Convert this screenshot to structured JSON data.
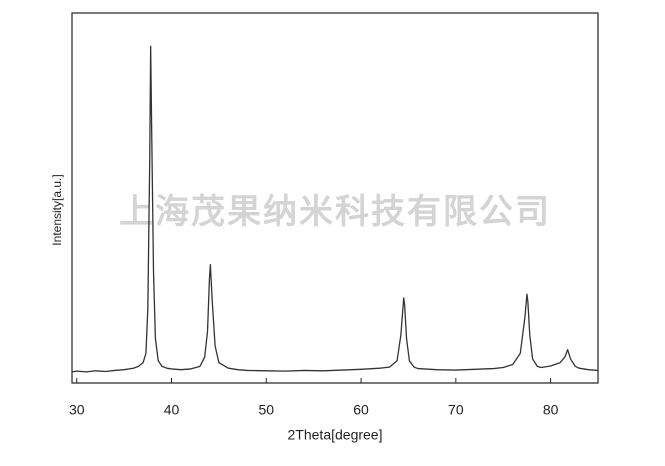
{
  "chart_data": {
    "type": "line",
    "x_label": "2Theta[degree]",
    "y_label": "Intensity[a.u.]",
    "watermark": "上海茂果纳米科技有限公司",
    "color": "#333333",
    "xlim": [
      29.5,
      85
    ],
    "ylim": [
      0,
      100
    ],
    "xticks": [
      30,
      40,
      50,
      60,
      70,
      80
    ],
    "x": [
      29.5,
      30,
      31,
      32,
      33,
      34,
      35,
      36,
      36.5,
      37,
      37.3,
      37.5,
      37.7,
      37.8,
      37.9,
      38.1,
      38.3,
      38.6,
      39,
      39.5,
      40,
      41,
      42,
      43,
      43.5,
      43.8,
      44.0,
      44.1,
      44.3,
      44.6,
      45,
      46,
      47,
      48,
      50,
      52,
      54,
      56,
      58,
      60,
      62,
      63,
      63.8,
      64.2,
      64.5,
      64.6,
      64.8,
      65.1,
      65.6,
      66,
      68,
      70,
      72,
      74,
      75,
      76,
      76.8,
      77.3,
      77.5,
      77.6,
      77.8,
      78.1,
      78.6,
      79,
      80,
      81,
      81.5,
      81.8,
      82.1,
      82.6,
      83,
      84,
      85
    ],
    "values": [
      3,
      3.2,
      3,
      3.3,
      3.1,
      3.4,
      3.6,
      4,
      4.5,
      5.5,
      8,
      20,
      60,
      91,
      70,
      30,
      12,
      6,
      4.5,
      4,
      3.8,
      3.6,
      3.8,
      4.5,
      7,
      14,
      28,
      32,
      22,
      10,
      5.5,
      4,
      3.6,
      3.4,
      3.3,
      3.2,
      3.4,
      3.3,
      3.5,
      3.7,
      4,
      4.3,
      6,
      13,
      23,
      21,
      12,
      6,
      4.3,
      3.9,
      3.6,
      3.5,
      3.7,
      3.9,
      4.2,
      5,
      8,
      18,
      24,
      22,
      13,
      6.5,
      4.5,
      4.2,
      4.6,
      5.5,
      7,
      9,
      6.5,
      4.5,
      4,
      3.6,
      3.4
    ]
  }
}
